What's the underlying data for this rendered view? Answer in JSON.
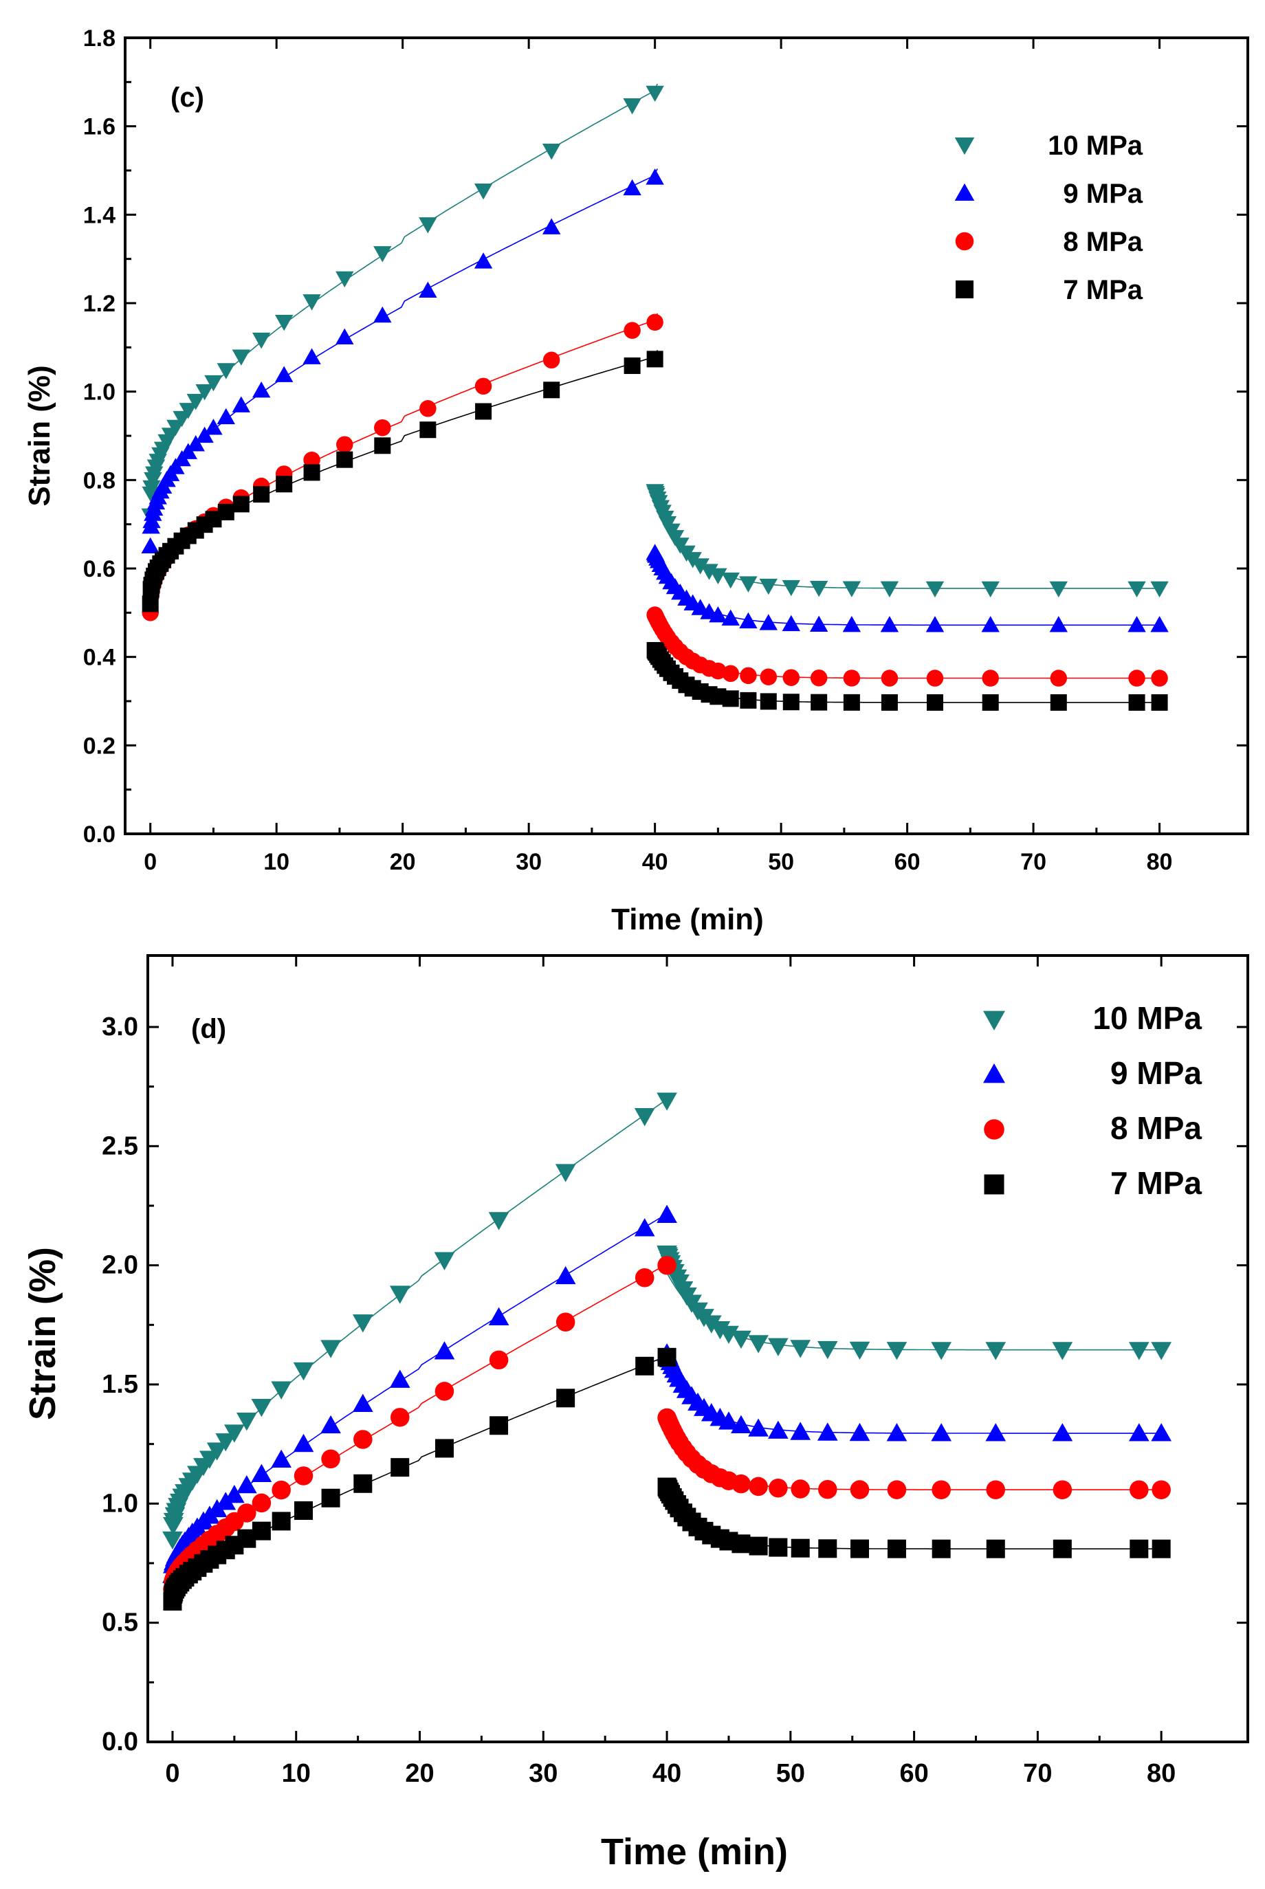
{
  "chart_data": [
    {
      "type": "scatter",
      "panel_label": "(c)",
      "xlabel": "Time (min)",
      "ylabel": "Strain (%)",
      "xlim": [
        -2,
        87
      ],
      "ylim": [
        0,
        1.8
      ],
      "xticks": [
        0,
        10,
        20,
        30,
        40,
        50,
        60,
        70,
        80
      ],
      "yticks": [
        0.0,
        0.2,
        0.4,
        0.6,
        0.8,
        1.0,
        1.2,
        1.4,
        1.6,
        1.8
      ],
      "xtick_labels": [
        "0",
        "10",
        "20",
        "30",
        "40",
        "50",
        "60",
        "70",
        "80"
      ],
      "ytick_labels": [
        "0.0",
        "0.2",
        "0.4",
        "0.6",
        "0.8",
        "1.0",
        "1.2",
        "1.4",
        "1.6",
        "1.8"
      ],
      "legend_position": "top-right",
      "series": [
        {
          "name": "10 MPa",
          "label": "10 MPa",
          "color": "#1a7f7a",
          "marker": "triangle-down",
          "creep_t0": 0.72,
          "creep_A": 0.1396,
          "creep_k": 0.0112,
          "recovery_inf": 0.555,
          "recovery_start": 0.775,
          "recovery_tau": 2.5
        },
        {
          "name": "9 MPa",
          "label": "9 MPa",
          "color": "#0000ff",
          "marker": "triangle-up",
          "creep_t0": 0.65,
          "creep_A": 0.1259,
          "creep_k": 0.0094,
          "recovery_inf": 0.472,
          "recovery_start": 0.635,
          "recovery_tau": 2.5
        },
        {
          "name": "8 MPa",
          "label": "8 MPa",
          "color": "#ff0000",
          "marker": "circle",
          "creep_t0": 0.5,
          "creep_A": 0.1058,
          "creep_k": 0.0068,
          "recovery_inf": 0.352,
          "recovery_start": 0.495,
          "recovery_tau": 2.3
        },
        {
          "name": "7 MPa",
          "label": "7 MPa",
          "color": "#000000",
          "marker": "square",
          "creep_t0": 0.52,
          "creep_A": 0.0939,
          "creep_k": 0.0053,
          "recovery_inf": 0.297,
          "recovery_start": 0.415,
          "recovery_tau": 2.3
        }
      ]
    },
    {
      "type": "scatter",
      "panel_label": "(d)",
      "xlabel": "Time (min)",
      "ylabel": "Strain (%)",
      "xlim": [
        -2,
        87
      ],
      "ylim": [
        0,
        3.3
      ],
      "xticks": [
        0,
        10,
        20,
        30,
        40,
        50,
        60,
        70,
        80
      ],
      "yticks": [
        0.0,
        0.5,
        1.0,
        1.5,
        2.0,
        2.5,
        3.0
      ],
      "xtick_labels": [
        "0",
        "10",
        "20",
        "30",
        "40",
        "50",
        "60",
        "70",
        "80"
      ],
      "ytick_labels": [
        "0.0",
        "0.5",
        "1.0",
        "1.5",
        "2.0",
        "2.5",
        "3.0"
      ],
      "legend_position": "top-right",
      "series": [
        {
          "name": "10 MPa",
          "label": "10 MPa",
          "color": "#1a7f7a",
          "marker": "triangle-down",
          "creep_t0": 0.85,
          "creep_A": 0.1676,
          "creep_k": 0.0308,
          "recovery_inf": 1.645,
          "recovery_start": 2.05,
          "recovery_tau": 2.8
        },
        {
          "name": "9 MPa",
          "label": "9 MPa",
          "color": "#0000ff",
          "marker": "triangle-up",
          "creep_t0": 0.7,
          "creep_A": 0.113,
          "creep_k": 0.0275,
          "recovery_inf": 1.295,
          "recovery_start": 1.63,
          "recovery_tau": 2.6
        },
        {
          "name": "8 MPa",
          "label": "8 MPa",
          "color": "#ff0000",
          "marker": "circle",
          "creep_t0": 0.64,
          "creep_A": 0.0879,
          "creep_k": 0.026,
          "recovery_inf": 1.058,
          "recovery_start": 1.36,
          "recovery_tau": 2.4
        },
        {
          "name": "7 MPa",
          "label": "7 MPa",
          "color": "#000000",
          "marker": "square",
          "creep_t0": 0.59,
          "creep_A": 0.0826,
          "creep_k": 0.0181,
          "recovery_inf": 0.81,
          "recovery_start": 1.07,
          "recovery_tau": 2.4
        }
      ]
    }
  ]
}
